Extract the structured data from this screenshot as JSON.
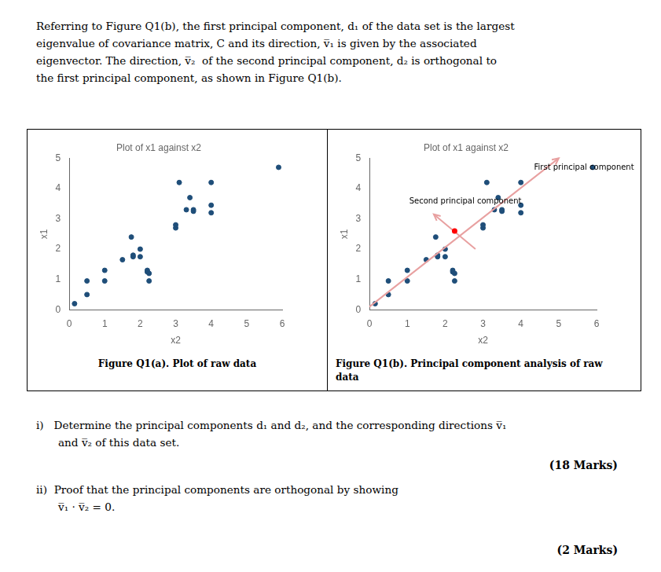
{
  "chart_data": [
    {
      "type": "scatter",
      "title": "Plot of x1 against x2",
      "xlabel": "x2",
      "ylabel": "x1",
      "x": [
        0.15,
        0.5,
        0.5,
        1.0,
        1.0,
        1.5,
        1.8,
        1.8,
        1.75,
        2.0,
        2.0,
        2.2,
        2.2,
        2.25,
        2.25,
        3.0,
        3.0,
        3.1,
        3.3,
        3.4,
        3.5,
        3.5,
        4.0,
        4.0,
        4.0,
        5.9
      ],
      "values": [
        0.2,
        0.5,
        0.95,
        0.95,
        1.3,
        1.65,
        1.8,
        1.75,
        2.4,
        2.0,
        1.75,
        1.25,
        1.3,
        1.2,
        0.95,
        2.7,
        2.8,
        4.2,
        3.3,
        3.7,
        3.25,
        3.3,
        3.2,
        4.2,
        3.45,
        4.7
      ],
      "color": "#1f4e79",
      "xlim": [
        0,
        6
      ],
      "ylim": [
        0,
        5
      ],
      "xticks": [
        0,
        1,
        2,
        3,
        4,
        5,
        6
      ],
      "yticks": [
        0,
        1,
        2,
        3,
        4,
        5
      ],
      "grid": false,
      "legend": false,
      "caption": [
        "Figure Q1(a). Plot of raw data"
      ]
    },
    {
      "type": "scatter",
      "title": "Plot of x1 against x2",
      "xlabel": "x2",
      "ylabel": "x1",
      "x": [
        0.15,
        0.5,
        0.5,
        1.0,
        1.0,
        1.5,
        1.8,
        1.8,
        1.75,
        2.0,
        2.0,
        2.2,
        2.2,
        2.25,
        2.25,
        3.0,
        3.0,
        3.1,
        3.3,
        3.4,
        3.5,
        3.5,
        4.0,
        4.0,
        4.0,
        5.9
      ],
      "values": [
        0.2,
        0.5,
        0.95,
        0.95,
        1.3,
        1.65,
        1.8,
        1.75,
        2.4,
        2.0,
        1.75,
        1.25,
        1.3,
        1.2,
        0.95,
        2.7,
        2.8,
        4.2,
        3.3,
        3.7,
        3.25,
        3.3,
        3.2,
        4.2,
        3.45,
        4.7
      ],
      "color": "#1f4e79",
      "xlim": [
        0,
        6
      ],
      "ylim": [
        0,
        5
      ],
      "xticks": [
        0,
        1,
        2,
        3,
        4,
        5,
        6
      ],
      "yticks": [
        0,
        1,
        2,
        3,
        4,
        5
      ],
      "grid": false,
      "legend": false,
      "annotations": [
        {
          "type": "arrow",
          "x": [
            0.0,
            5.0
          ],
          "y": [
            0.1,
            5.0
          ],
          "color": "#e8a0a0"
        },
        {
          "type": "text",
          "text": "First principal component",
          "x": 4.35,
          "y": 4.55
        },
        {
          "type": "arrow",
          "x": [
            2.8,
            1.7
          ],
          "y": [
            2.0,
            3.15
          ],
          "color": "#e8a0a0"
        },
        {
          "type": "point",
          "x": 2.25,
          "y": 2.6,
          "color": "red"
        },
        {
          "type": "text",
          "text": "Second principal component",
          "x": 1.05,
          "y": 3.45
        }
      ],
      "caption": [
        "Figure Q1(b). Principal component analysis of raw",
        "data"
      ]
    }
  ],
  "header": [
    "Referring to Figure Q1(b), the first principal component, d₁ of the data set is the largest",
    "eigenvalue of covariance matrix, C and its direction, v̅₁ is given by the associated",
    "eigenvector. The direction, v̅₂  of the second principal component, d₂ is orthogonal to",
    "the first principal component, as shown in Figure Q1(b)."
  ],
  "questions": [
    {
      "lines": [
        "i)   Determine the principal components d₁ and d₂, and the corresponding directions v̅₁",
        "and v̅₂ of this data set."
      ],
      "marks": "(18 Marks)"
    },
    {
      "lines": [
        "ii)  Proof that the principal components are orthogonal by showing",
        "v̅₁ · v̅₂ = 0."
      ],
      "marks": "(2 Marks)"
    }
  ]
}
